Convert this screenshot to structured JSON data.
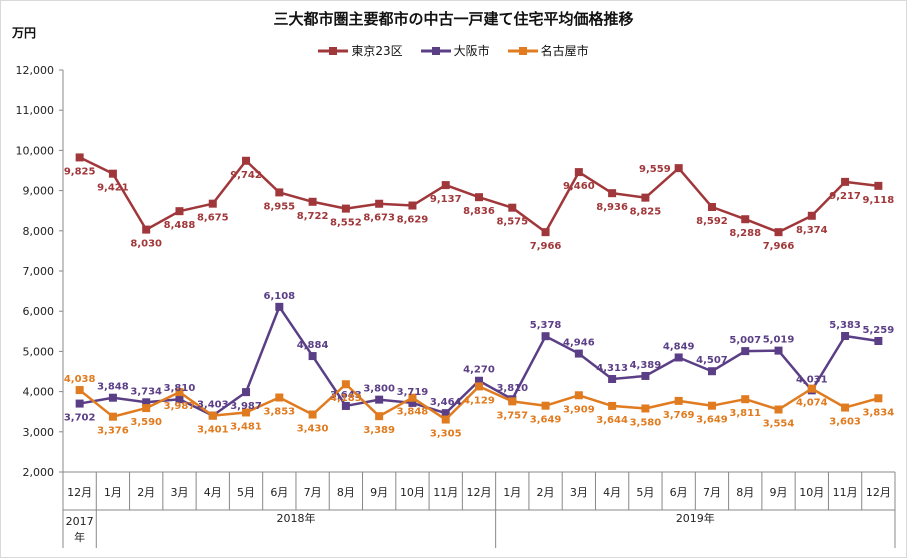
{
  "chart_data": {
    "type": "line",
    "title": "三大都市圏主要都市の中古一戸建て住宅平均価格推移",
    "ylabel": "万円",
    "ylim": [
      2000,
      12000
    ],
    "yticks": [
      "2,000",
      "3,000",
      "4,000",
      "5,000",
      "6,000",
      "7,000",
      "8,000",
      "9,000",
      "10,000",
      "11,000",
      "12,000"
    ],
    "categories": [
      "12月",
      "1月",
      "2月",
      "3月",
      "4月",
      "5月",
      "6月",
      "7月",
      "8月",
      "9月",
      "10月",
      "11月",
      "12月",
      "1月",
      "2月",
      "3月",
      "4月",
      "5月",
      "6月",
      "7月",
      "8月",
      "9月",
      "10月",
      "11月",
      "12月"
    ],
    "year_groups": [
      {
        "label_line1": "2017",
        "label_line2": "年",
        "from": 0,
        "to": 0
      },
      {
        "label_line1": "2018年",
        "label_line2": "",
        "from": 1,
        "to": 12
      },
      {
        "label_line1": "2019年",
        "label_line2": "",
        "from": 13,
        "to": 24
      }
    ],
    "legend_position": "top-center",
    "series": [
      {
        "name": "東京23区",
        "color": "#a0373a",
        "marker": "square",
        "values": [
          9825,
          9421,
          8030,
          8488,
          8675,
          9742,
          8955,
          8722,
          8552,
          8673,
          8629,
          9137,
          8836,
          8575,
          7966,
          9460,
          8936,
          8825,
          9559,
          8592,
          8288,
          7966,
          8374,
          9217,
          9118
        ],
        "labels": [
          "9,825",
          "9,421",
          "8,030",
          "8,488",
          "8,675",
          "9,742",
          "8,955",
          "8,722",
          "8,552",
          "8,673",
          "8,629",
          "9,137",
          "8,836",
          "8,575",
          "7,966",
          "9,460",
          "8,936",
          "8,825",
          "9,559",
          "8,592",
          "8,288",
          "7,966",
          "8,374",
          "9,217",
          "9,118"
        ],
        "label_pos": [
          "below",
          "below",
          "below",
          "below",
          "below",
          "below",
          "below",
          "below",
          "below",
          "below",
          "below",
          "below",
          "below",
          "below",
          "below",
          "below",
          "below",
          "below",
          "left",
          "below",
          "below",
          "below",
          "below",
          "below",
          "below"
        ]
      },
      {
        "name": "大阪市",
        "color": "#5b3f86",
        "marker": "square",
        "values": [
          3702,
          3848,
          3734,
          3810,
          3403,
          3987,
          6108,
          4884,
          3643,
          3800,
          3719,
          3464,
          4270,
          3810,
          5378,
          4946,
          4313,
          4389,
          4849,
          4507,
          5007,
          5019,
          4031,
          5383,
          5259
        ],
        "labels": [
          "3,702",
          "3,848",
          "3,734",
          "3,810",
          "3,403",
          "3,987",
          "6,108",
          "4,884",
          "3,643",
          "3,800",
          "3,719",
          "3,464",
          "4,270",
          "3,810",
          "5,378",
          "4,946",
          "4,313",
          "4,389",
          "4,849",
          "4,507",
          "5,007",
          "5,019",
          "4,031",
          "5,383",
          "5,259"
        ],
        "label_pos": [
          "below",
          "above",
          "above",
          "above",
          "above",
          "below",
          "above",
          "above",
          "above",
          "above",
          "above",
          "above",
          "above",
          "above",
          "above",
          "above",
          "above",
          "above",
          "above",
          "above",
          "above",
          "above",
          "above",
          "above",
          "above"
        ]
      },
      {
        "name": "名古屋市",
        "color": "#e07b1f",
        "marker": "square",
        "values": [
          4038,
          3376,
          3590,
          3987,
          3401,
          3481,
          3853,
          3430,
          4183,
          3389,
          3848,
          3305,
          4129,
          3757,
          3649,
          3909,
          3644,
          3580,
          3769,
          3649,
          3811,
          3554,
          4074,
          3603,
          3834
        ],
        "labels": [
          "4,038",
          "3,376",
          "3,590",
          "3,987",
          "3,401",
          "3,481",
          "3,853",
          "3,430",
          "4,183",
          "3,389",
          "3,848",
          "3,305",
          "4,129",
          "3,757",
          "3,649",
          "3,909",
          "3,644",
          "3,580",
          "3,769",
          "3,649",
          "3,811",
          "3,554",
          "4,074",
          "3,603",
          "3,834"
        ],
        "label_pos": [
          "above",
          "below",
          "below",
          "below",
          "below",
          "below",
          "below",
          "below",
          "below",
          "below",
          "below",
          "below",
          "below",
          "below",
          "below",
          "below",
          "below",
          "below",
          "below",
          "below",
          "below",
          "below",
          "below",
          "below",
          "below"
        ]
      }
    ]
  }
}
